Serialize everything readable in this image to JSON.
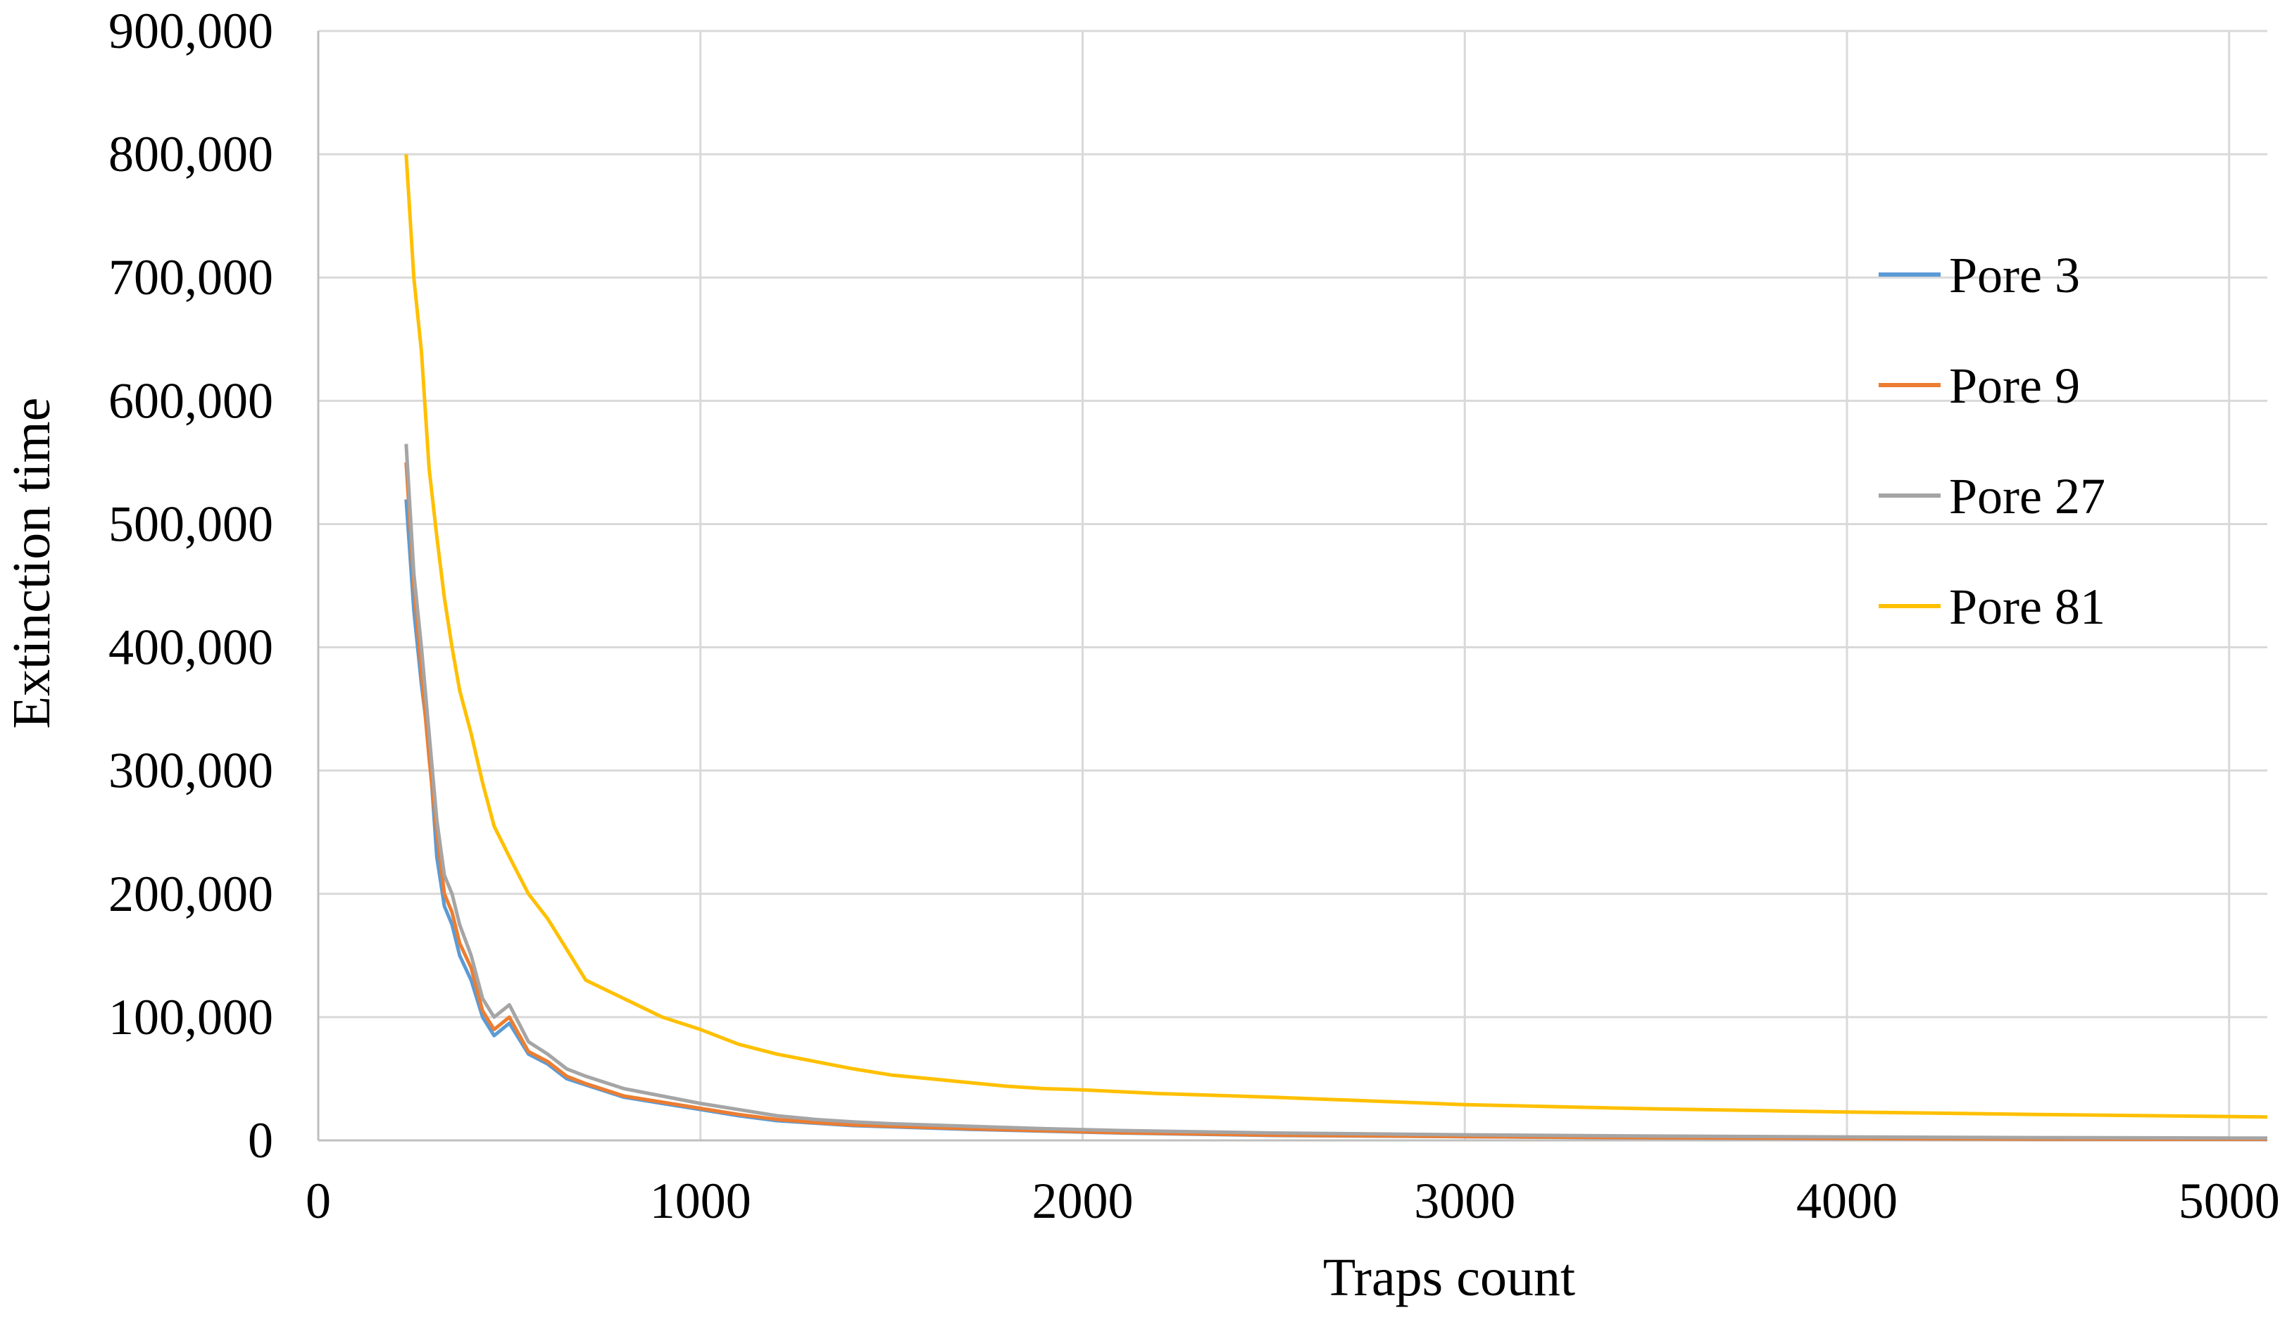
{
  "chart_data": {
    "type": "line",
    "title": "",
    "xlabel": "Traps count",
    "ylabel": "Extinction time",
    "xlim": [
      0,
      5100
    ],
    "ylim": [
      0,
      900000
    ],
    "x_ticks": [
      0,
      1000,
      2000,
      3000,
      4000,
      5000
    ],
    "x_tick_labels": [
      "0",
      "1000",
      "2000",
      "3000",
      "4000",
      "5000"
    ],
    "y_ticks": [
      0,
      100000,
      200000,
      300000,
      400000,
      500000,
      600000,
      700000,
      800000,
      900000
    ],
    "y_tick_labels": [
      "0",
      "100,000",
      "200,000",
      "300,000",
      "400,000",
      "500,000",
      "600,000",
      "700,000",
      "800,000",
      "900,000"
    ],
    "grid": true,
    "legend_position": "right",
    "series": [
      {
        "name": "Pore 3",
        "color": "#5b9bd5",
        "points": [
          [
            230,
            520000
          ],
          [
            250,
            430000
          ],
          [
            270,
            370000
          ],
          [
            290,
            320000
          ],
          [
            310,
            230000
          ],
          [
            330,
            190000
          ],
          [
            350,
            175000
          ],
          [
            370,
            150000
          ],
          [
            400,
            130000
          ],
          [
            430,
            100000
          ],
          [
            460,
            85000
          ],
          [
            500,
            95000
          ],
          [
            550,
            70000
          ],
          [
            600,
            62000
          ],
          [
            650,
            50000
          ],
          [
            700,
            45000
          ],
          [
            800,
            35000
          ],
          [
            900,
            30000
          ],
          [
            1000,
            25000
          ],
          [
            1100,
            20000
          ],
          [
            1200,
            16000
          ],
          [
            1300,
            14000
          ],
          [
            1400,
            12000
          ],
          [
            1500,
            11000
          ],
          [
            1700,
            9000
          ],
          [
            1900,
            7500
          ],
          [
            2100,
            6000
          ],
          [
            2500,
            4000
          ],
          [
            3000,
            3000
          ],
          [
            3500,
            2000
          ],
          [
            4000,
            1500
          ],
          [
            4500,
            1000
          ],
          [
            5100,
            800
          ]
        ]
      },
      {
        "name": "Pore 9",
        "color": "#ed7d31",
        "points": [
          [
            230,
            550000
          ],
          [
            250,
            450000
          ],
          [
            270,
            380000
          ],
          [
            290,
            310000
          ],
          [
            310,
            250000
          ],
          [
            330,
            200000
          ],
          [
            350,
            185000
          ],
          [
            370,
            160000
          ],
          [
            400,
            140000
          ],
          [
            430,
            105000
          ],
          [
            460,
            90000
          ],
          [
            500,
            100000
          ],
          [
            550,
            72000
          ],
          [
            600,
            64000
          ],
          [
            650,
            52000
          ],
          [
            700,
            46000
          ],
          [
            800,
            36000
          ],
          [
            900,
            31000
          ],
          [
            1000,
            26000
          ],
          [
            1100,
            21000
          ],
          [
            1200,
            17000
          ],
          [
            1300,
            14500
          ],
          [
            1400,
            12500
          ],
          [
            1500,
            11500
          ],
          [
            1700,
            9500
          ],
          [
            1900,
            7800
          ],
          [
            2100,
            6200
          ],
          [
            2500,
            4200
          ],
          [
            3000,
            3100
          ],
          [
            3500,
            2100
          ],
          [
            4000,
            1600
          ],
          [
            4500,
            1100
          ],
          [
            5100,
            900
          ]
        ]
      },
      {
        "name": "Pore 27",
        "color": "#a5a5a5",
        "points": [
          [
            230,
            565000
          ],
          [
            250,
            460000
          ],
          [
            270,
            400000
          ],
          [
            290,
            330000
          ],
          [
            310,
            260000
          ],
          [
            330,
            215000
          ],
          [
            350,
            200000
          ],
          [
            370,
            175000
          ],
          [
            400,
            150000
          ],
          [
            430,
            115000
          ],
          [
            460,
            100000
          ],
          [
            500,
            110000
          ],
          [
            550,
            80000
          ],
          [
            600,
            70000
          ],
          [
            650,
            58000
          ],
          [
            700,
            52000
          ],
          [
            800,
            42000
          ],
          [
            900,
            36000
          ],
          [
            1000,
            30000
          ],
          [
            1100,
            25000
          ],
          [
            1200,
            20000
          ],
          [
            1300,
            17000
          ],
          [
            1400,
            15000
          ],
          [
            1500,
            13500
          ],
          [
            1700,
            11500
          ],
          [
            1900,
            9500
          ],
          [
            2100,
            8000
          ],
          [
            2500,
            6000
          ],
          [
            3000,
            4500
          ],
          [
            3500,
            3500
          ],
          [
            4000,
            2800
          ],
          [
            4500,
            2200
          ],
          [
            5100,
            1800
          ]
        ]
      },
      {
        "name": "Pore 81",
        "color": "#ffc000",
        "points": [
          [
            230,
            800000
          ],
          [
            250,
            700000
          ],
          [
            270,
            640000
          ],
          [
            290,
            545000
          ],
          [
            310,
            490000
          ],
          [
            330,
            440000
          ],
          [
            350,
            400000
          ],
          [
            370,
            365000
          ],
          [
            400,
            330000
          ],
          [
            430,
            290000
          ],
          [
            460,
            255000
          ],
          [
            500,
            230000
          ],
          [
            550,
            200000
          ],
          [
            600,
            180000
          ],
          [
            650,
            155000
          ],
          [
            700,
            130000
          ],
          [
            800,
            115000
          ],
          [
            900,
            100000
          ],
          [
            1000,
            90000
          ],
          [
            1100,
            78000
          ],
          [
            1200,
            70000
          ],
          [
            1300,
            64000
          ],
          [
            1400,
            58000
          ],
          [
            1500,
            53000
          ],
          [
            1600,
            50000
          ],
          [
            1700,
            47000
          ],
          [
            1800,
            44000
          ],
          [
            1900,
            42000
          ],
          [
            2000,
            41000
          ],
          [
            2200,
            38000
          ],
          [
            2500,
            35000
          ],
          [
            3000,
            29000
          ],
          [
            3500,
            25500
          ],
          [
            4000,
            23000
          ],
          [
            4500,
            21000
          ],
          [
            5100,
            19000
          ]
        ]
      }
    ]
  }
}
